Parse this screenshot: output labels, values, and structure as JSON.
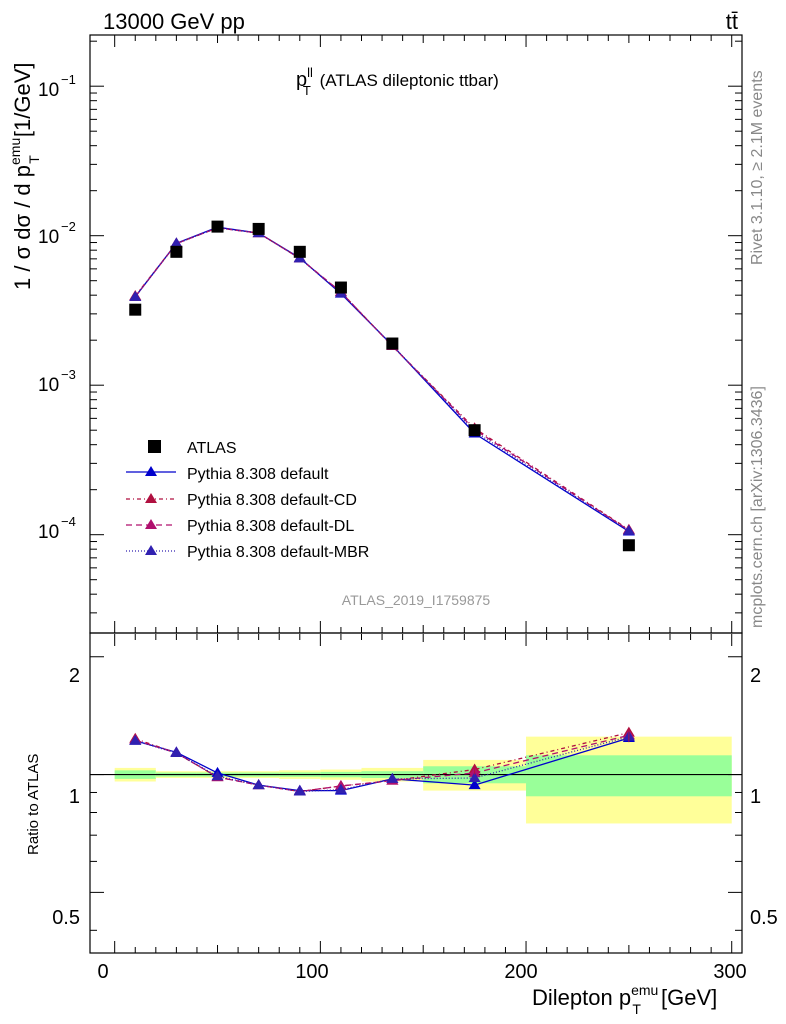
{
  "header": {
    "left": "13000 GeV pp",
    "right": "tt̄"
  },
  "side": {
    "rivet": "Rivet 3.1.10, ≥ 2.1M events",
    "mcplots": "mcplots.cern.ch [arXiv:1306.3436]"
  },
  "main": {
    "title_main": "p",
    "title_sup": "ll",
    "title_sub": "T",
    "title_rest": " (ATLAS dileptonic ttbar)",
    "ylabel": "1 / σ  dσ / d p",
    "ylabel_sup": "emu",
    "ylabel_sub": "T",
    "ylabel_unit": " [1/GeV]",
    "watermark": "ATLAS_2019_I1759875",
    "ytick_labels": [
      "10",
      "10",
      "10",
      "10"
    ],
    "ytick_exps": [
      "−1",
      "−2",
      "−3",
      "−4"
    ]
  },
  "ratio": {
    "ylabel": "Ratio to ATLAS",
    "ytick_labels": [
      "2",
      "1",
      "0.5"
    ]
  },
  "xaxis": {
    "label": "Dilepton p",
    "label_sup": "emu",
    "label_sub": "T",
    "label_unit": " [GeV]",
    "tick_labels": [
      "0",
      "100",
      "200",
      "300"
    ]
  },
  "legend": [
    "ATLAS",
    "Pythia 8.308 default",
    "Pythia 8.308 default-CD",
    "Pythia 8.308 default-DL",
    "Pythia 8.308 default-MBR"
  ],
  "chart_data": {
    "type": "line",
    "x": [
      10,
      30,
      50,
      70,
      90,
      110,
      135,
      175,
      250
    ],
    "bins": [
      [
        0,
        20
      ],
      [
        20,
        40
      ],
      [
        40,
        60
      ],
      [
        60,
        80
      ],
      [
        80,
        100
      ],
      [
        100,
        120
      ],
      [
        120,
        150
      ],
      [
        150,
        200
      ],
      [
        200,
        300
      ]
    ],
    "xlim": [
      -12,
      305
    ],
    "ylim": [
      2.2e-05,
      0.22
    ],
    "yscale": "log",
    "ratio_ylim": [
      0.35,
      2.3
    ],
    "ratio_yscale": "log",
    "data": {
      "name": "ATLAS",
      "values": [
        0.0032,
        0.0078,
        0.0115,
        0.0111,
        0.0078,
        0.0045,
        0.0019,
        0.0005,
        8.5e-05
      ],
      "band_inner": [
        0.025,
        0.012,
        0.012,
        0.012,
        0.013,
        0.016,
        0.02,
        0.05,
        0.12
      ],
      "band_outer": [
        0.04,
        0.02,
        0.02,
        0.02,
        0.025,
        0.03,
        0.04,
        0.09,
        0.25
      ]
    },
    "series": [
      {
        "name": "Pythia 8.308 default",
        "color": "#0000cc",
        "dash": "",
        "values": [
          0.0039,
          0.0089,
          0.0114,
          0.0104,
          0.0071,
          0.0041,
          0.00185,
          0.000475,
          0.000105
        ]
      },
      {
        "name": "Pythia 8.308 default-CD",
        "color": "#b01040",
        "dash": "4,3,1,3",
        "values": [
          0.00395,
          0.00885,
          0.0113,
          0.0104,
          0.00705,
          0.0042,
          0.00183,
          0.000515,
          0.000108
        ]
      },
      {
        "name": "Pythia 8.308 default-DL",
        "color": "#b0106e",
        "dash": "6,4",
        "values": [
          0.0039,
          0.00885,
          0.0113,
          0.0104,
          0.00705,
          0.0042,
          0.00183,
          0.000505,
          0.000107
        ]
      },
      {
        "name": "Pythia 8.308 default-MBR",
        "color": "#3020b0",
        "dash": "1,2",
        "values": [
          0.0039,
          0.00885,
          0.0113,
          0.0104,
          0.00705,
          0.00412,
          0.00185,
          0.00049,
          0.000106
        ]
      }
    ],
    "ratios": [
      [
        1.22,
        1.14,
        1.01,
        0.94,
        0.91,
        0.91,
        0.975,
        0.94,
        1.24
      ],
      [
        1.235,
        1.135,
        0.985,
        0.94,
        0.905,
        0.935,
        0.965,
        1.03,
        1.28
      ],
      [
        1.225,
        1.135,
        0.985,
        0.94,
        0.905,
        0.935,
        0.965,
        1.01,
        1.26
      ],
      [
        1.22,
        1.135,
        0.99,
        0.94,
        0.905,
        0.915,
        0.975,
        0.98,
        1.25
      ]
    ]
  }
}
